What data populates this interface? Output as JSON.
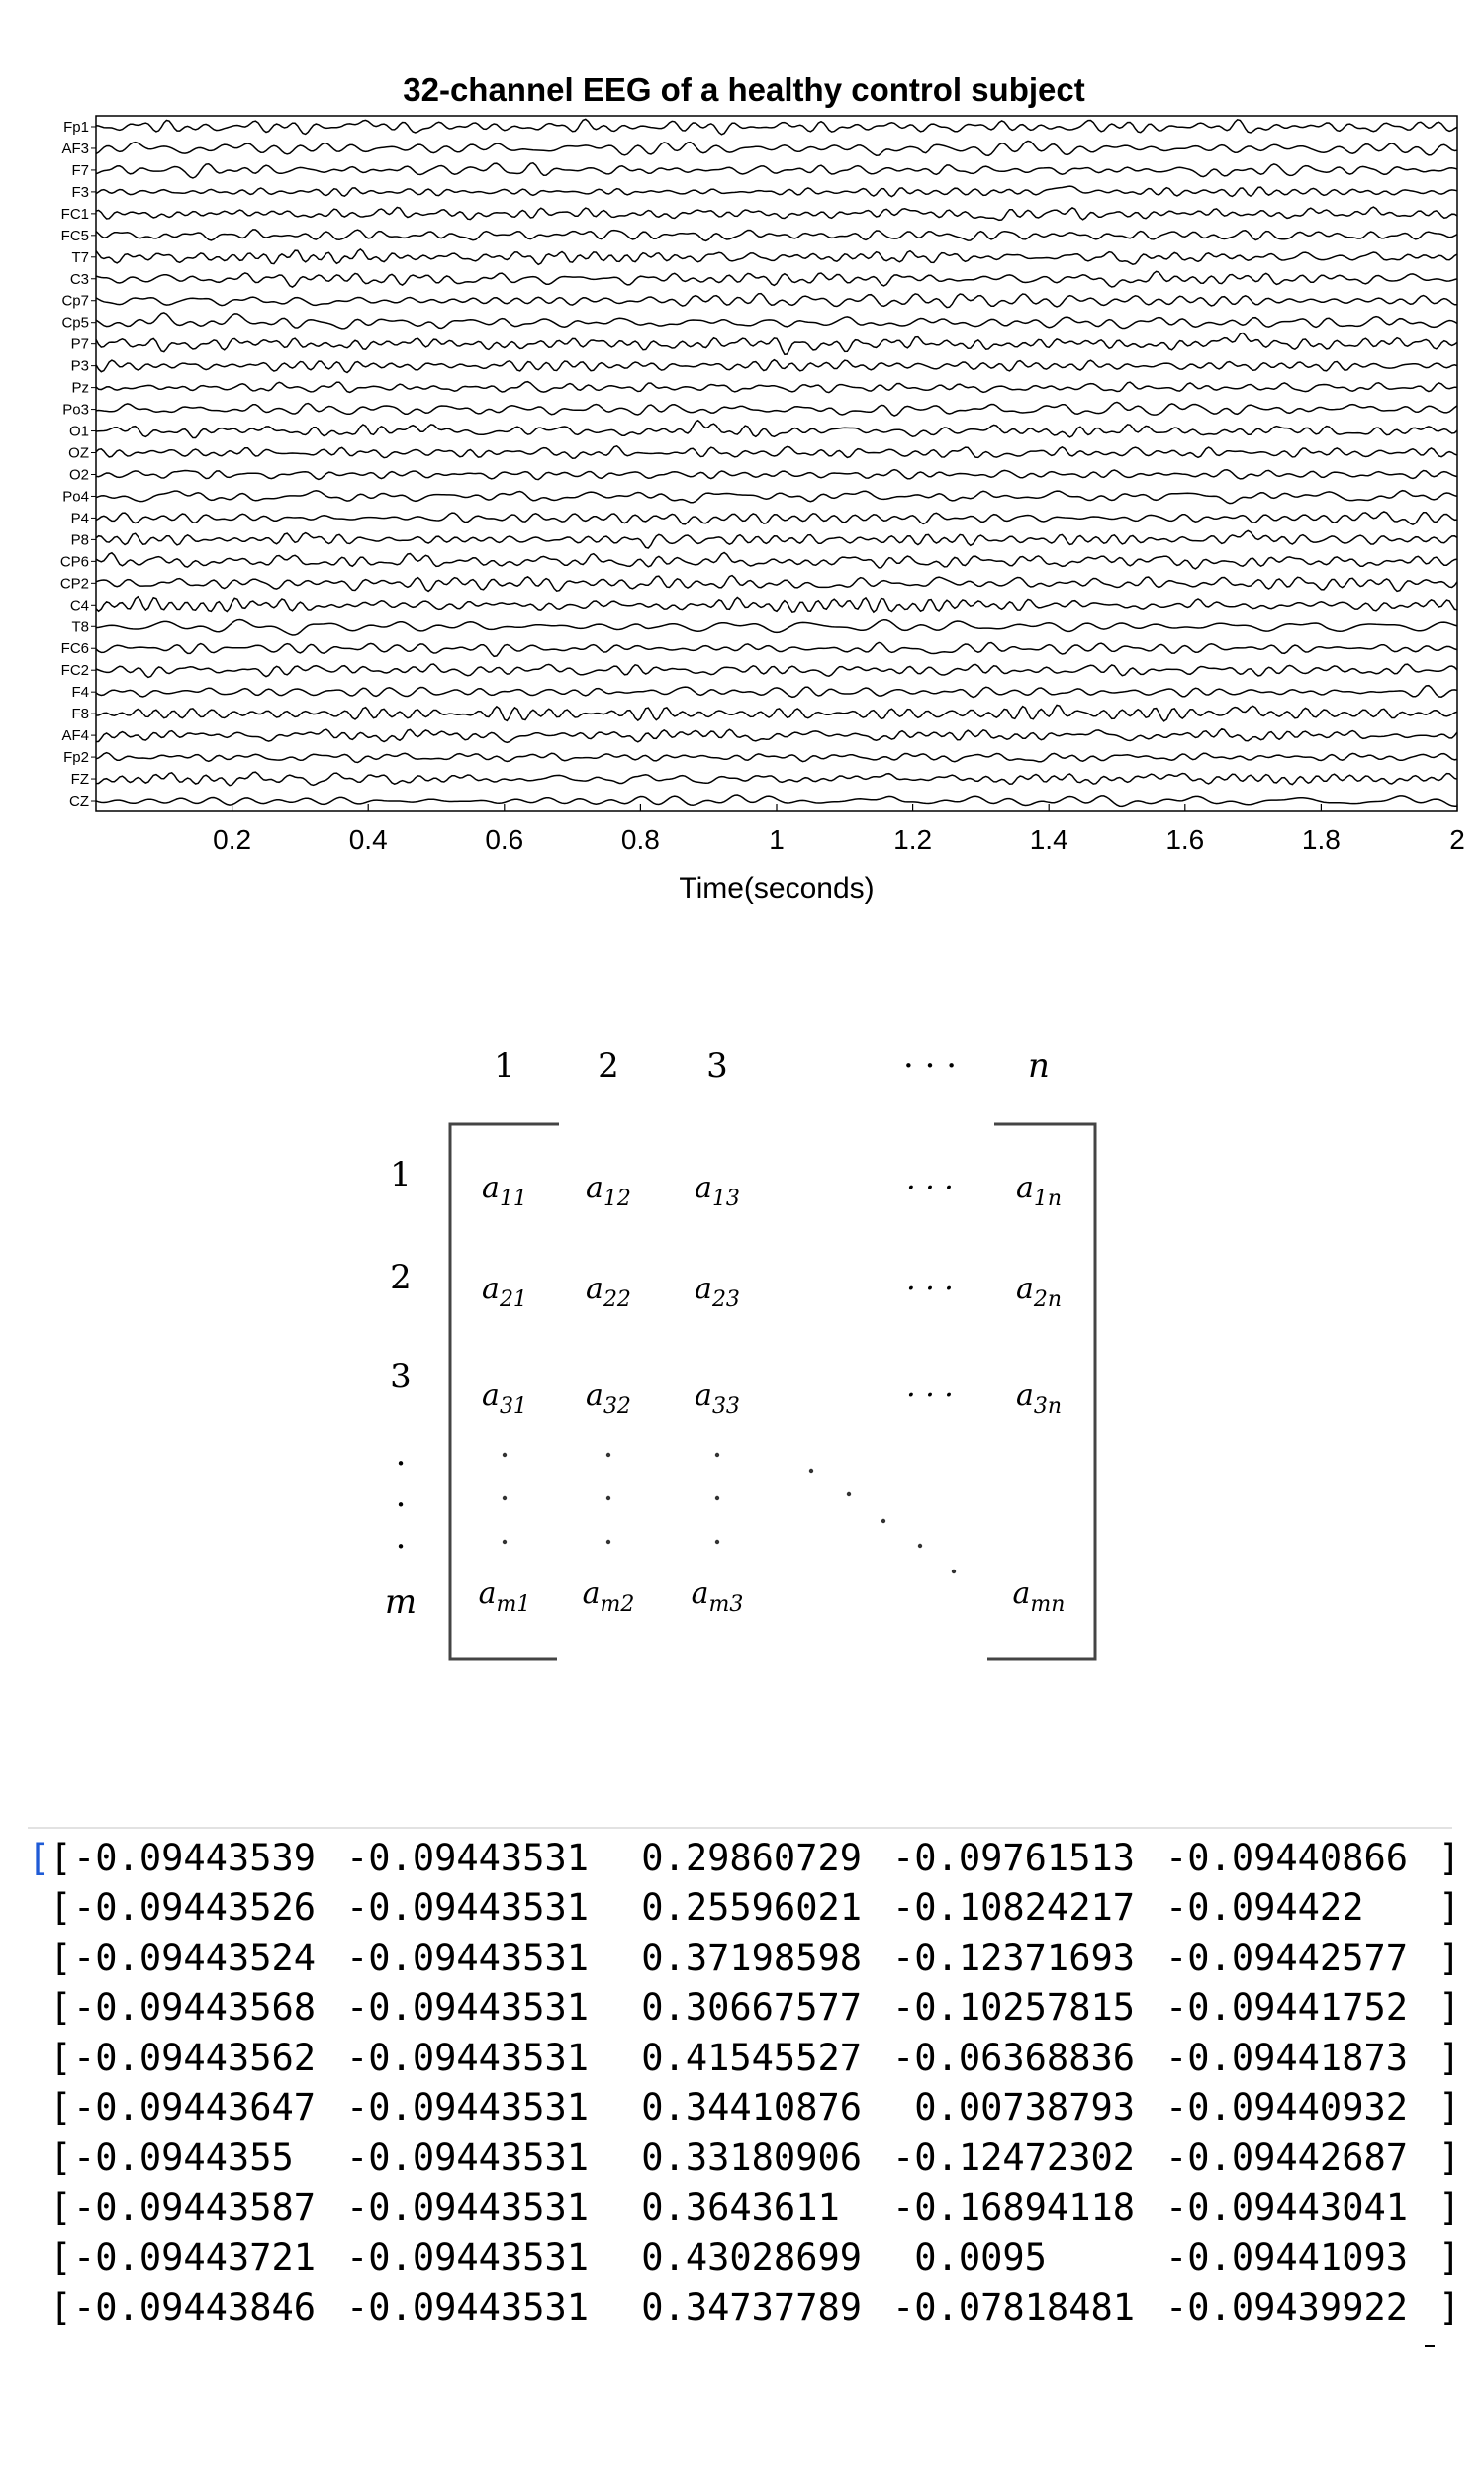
{
  "chart_data": [
    {
      "type": "line",
      "title": "32-channel EEG of a healthy control subject",
      "xlabel": "Time(seconds)",
      "ylabel": "",
      "xlim": [
        0,
        2
      ],
      "xticks": [
        0.2,
        0.4,
        0.6,
        0.8,
        1,
        1.2,
        1.4,
        1.6,
        1.8,
        2
      ],
      "xtick_labels": [
        "0.2",
        "0.4",
        "0.6",
        "0.8",
        "1",
        "1.2",
        "1.4",
        "1.6",
        "1.8",
        "2"
      ],
      "grid": false,
      "channels": [
        "Fp1",
        "AF3",
        "F7",
        "F3",
        "FC1",
        "FC5",
        "T7",
        "C3",
        "Cp7",
        "Cp5",
        "P7",
        "P3",
        "Pz",
        "Po3",
        "O1",
        "OZ",
        "O2",
        "Po4",
        "P4",
        "P8",
        "CP6",
        "CP2",
        "C4",
        "T8",
        "FC6",
        "FC2",
        "F4",
        "F8",
        "AF4",
        "Fp2",
        "FZ",
        "CZ"
      ],
      "line_color": "#000000"
    }
  ],
  "matrix": {
    "col_indices": [
      "1",
      "2",
      "3",
      "· · ·",
      "n"
    ],
    "row_indices": [
      "1",
      "2",
      "3",
      ".",
      ".",
      ".",
      "m"
    ],
    "rows": [
      [
        [
          "a",
          "11"
        ],
        [
          "a",
          "12"
        ],
        [
          "a",
          "13"
        ],
        [
          "· · ·",
          ""
        ],
        [
          "a",
          "1n"
        ]
      ],
      [
        [
          "a",
          "21"
        ],
        [
          "a",
          "22"
        ],
        [
          "a",
          "23"
        ],
        [
          "· · ·",
          ""
        ],
        [
          "a",
          "2n"
        ]
      ],
      [
        [
          "a",
          "31"
        ],
        [
          "a",
          "32"
        ],
        [
          "a",
          "33"
        ],
        [
          "· · ·",
          ""
        ],
        [
          "a",
          "3n"
        ]
      ],
      [
        [
          "a",
          "m1"
        ],
        [
          "a",
          "m2"
        ],
        [
          "a",
          "m3"
        ],
        [
          "",
          ""
        ],
        [
          "a",
          "mn"
        ]
      ]
    ]
  },
  "array_output": {
    "open_outer": "[",
    "open_inner": "[",
    "close_inner": "]",
    "close_outer": "]",
    "rows": [
      [
        "-0.09443539",
        "-0.09443531",
        " 0.29860729",
        "-0.09761513",
        "-0.09440866"
      ],
      [
        "-0.09443526",
        "-0.09443531",
        " 0.25596021",
        "-0.10824217",
        "-0.094422  "
      ],
      [
        "-0.09443524",
        "-0.09443531",
        " 0.37198598",
        "-0.12371693",
        "-0.09442577"
      ],
      [
        "-0.09443568",
        "-0.09443531",
        " 0.30667577",
        "-0.10257815",
        "-0.09441752"
      ],
      [
        "-0.09443562",
        "-0.09443531",
        " 0.41545527",
        "-0.06368836",
        "-0.09441873"
      ],
      [
        "-0.09443647",
        "-0.09443531",
        " 0.34410876",
        " 0.00738793",
        "-0.09440932"
      ],
      [
        "-0.0944355 ",
        "-0.09443531",
        " 0.33180906",
        "-0.12472302",
        "-0.09442687"
      ],
      [
        "-0.09443587",
        "-0.09443531",
        " 0.3643611 ",
        "-0.16894118",
        "-0.09443041"
      ],
      [
        "-0.09443721",
        "-0.09443531",
        " 0.43028699",
        " 0.0095    ",
        "-0.09441093"
      ],
      [
        "-0.09443846",
        "-0.09443531",
        " 0.34737789",
        "-0.07818481",
        "-0.09439922"
      ]
    ]
  }
}
